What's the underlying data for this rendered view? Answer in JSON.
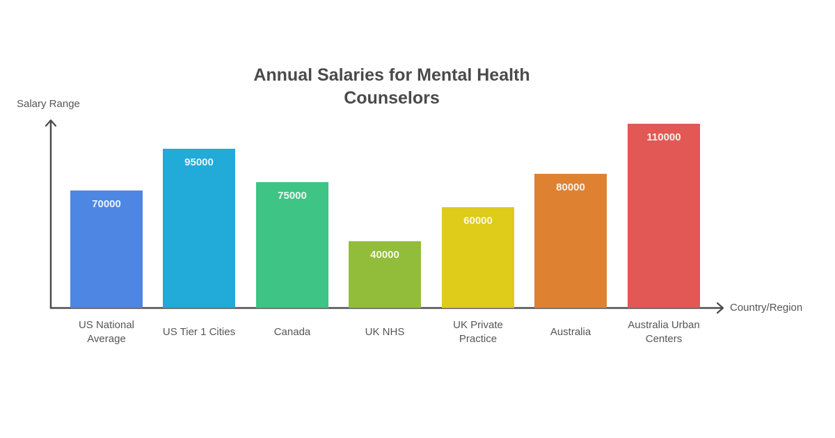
{
  "chart_data": {
    "type": "bar",
    "title": "Annual Salaries for Mental Health Counselors",
    "xlabel": "Country/Region",
    "ylabel": "Salary Range",
    "categories": [
      "US National Average",
      "US Tier 1 Cities",
      "Canada",
      "UK NHS",
      "UK Private Practice",
      "Australia",
      "Australia Urban Centers"
    ],
    "values": [
      70000,
      95000,
      75000,
      40000,
      60000,
      80000,
      110000
    ],
    "colors": [
      "#4e86e4",
      "#22aad8",
      "#3ec484",
      "#92bd3a",
      "#decb1a",
      "#de8231",
      "#e25855"
    ],
    "ylim": [
      0,
      112000
    ],
    "grid": false,
    "legend": null,
    "data_labels": true
  },
  "title_line1": "Annual Salaries for Mental Health",
  "title_line2": "Counselors",
  "axis_color": "#4a4a4a"
}
